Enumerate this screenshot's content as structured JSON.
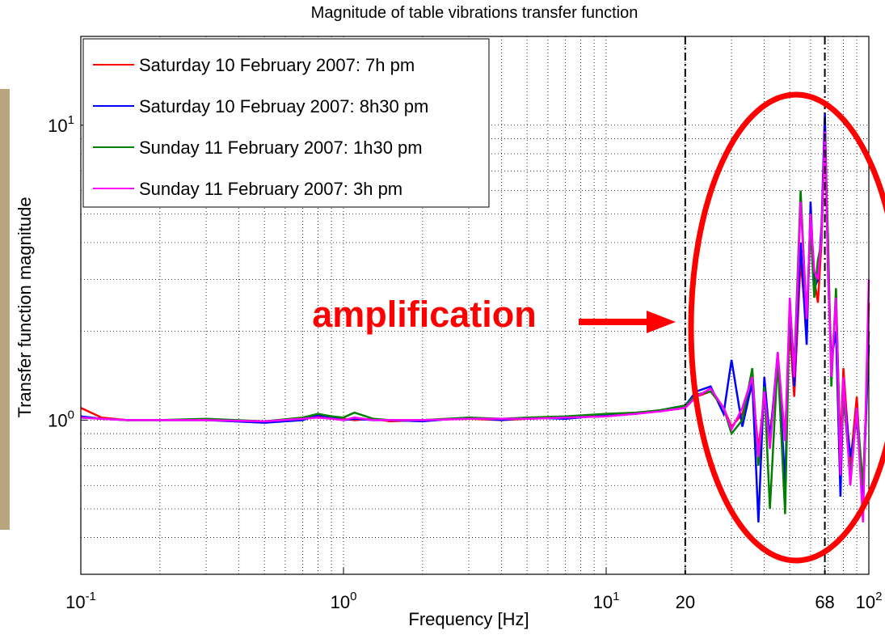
{
  "chart_data": {
    "type": "line",
    "title": "Magnitude of table vibrations transfer function",
    "x_label": "Frequency [Hz]",
    "y_label": "Transfer function magnitude",
    "x_scale": "log",
    "y_scale": "log",
    "grid": true,
    "minor_grid": true,
    "legend_position": "upper-left",
    "xlim": [
      0.1,
      100
    ],
    "ylim": [
      0.3,
      20
    ],
    "xticks": [
      {
        "value": 0.1,
        "label": "10^-1"
      },
      {
        "value": 1,
        "label": "10^0"
      },
      {
        "value": 10,
        "label": "10^1"
      },
      20,
      68,
      {
        "value": 100,
        "label": "10^2"
      }
    ],
    "yticks": [
      {
        "value": 1,
        "label": "10^0"
      },
      {
        "value": 10,
        "label": "10^1"
      }
    ],
    "reference_lines": [
      20,
      68
    ],
    "annotations": [
      {
        "text": "amplification",
        "color": "#ff0000"
      }
    ],
    "x": [
      0.1,
      0.12,
      0.15,
      0.2,
      0.3,
      0.5,
      0.7,
      0.8,
      0.9,
      1.0,
      1.1,
      1.3,
      1.5,
      2,
      3,
      4,
      5,
      7,
      10,
      13,
      16,
      20,
      22,
      25,
      28,
      30,
      33,
      36,
      38,
      40,
      42,
      45,
      48,
      50,
      52,
      55,
      58,
      60,
      62,
      64,
      66,
      68,
      70,
      72,
      75,
      78,
      80,
      85,
      90,
      95,
      100
    ],
    "series": [
      {
        "name": "Saturday 10 February 2007: 7h pm",
        "color": "#ff0000",
        "values": [
          1.1,
          1.02,
          1.0,
          1.0,
          1.0,
          0.99,
          1.01,
          1.03,
          1.02,
          1.01,
          1.0,
          1.01,
          0.99,
          1.0,
          1.01,
          1.0,
          1.01,
          1.02,
          1.03,
          1.06,
          1.07,
          1.1,
          1.2,
          1.25,
          1.1,
          0.95,
          1.05,
          1.3,
          0.8,
          1.2,
          0.9,
          1.5,
          0.9,
          2.0,
          1.2,
          3.5,
          2.0,
          5.0,
          3.0,
          2.5,
          4.0,
          10.5,
          3.5,
          1.5,
          2.5,
          0.8,
          1.5,
          0.7,
          1.2,
          0.5,
          2.5
        ]
      },
      {
        "name": "Saturday 10 Februay 2007: 8h30 pm",
        "color": "#0000ff",
        "values": [
          1.03,
          1.01,
          1.0,
          1.0,
          1.0,
          0.98,
          1.0,
          1.04,
          1.02,
          1.0,
          1.01,
          1.0,
          1.0,
          0.99,
          1.02,
          1.0,
          1.02,
          1.01,
          1.04,
          1.05,
          1.08,
          1.12,
          1.25,
          1.3,
          1.05,
          1.6,
          0.95,
          1.35,
          0.45,
          1.4,
          0.85,
          1.7,
          0.6,
          2.4,
          1.3,
          4.0,
          1.8,
          5.5,
          2.8,
          3.0,
          4.5,
          11.0,
          3.0,
          1.6,
          2.0,
          0.55,
          1.3,
          0.75,
          1.0,
          0.55,
          1.8
        ]
      },
      {
        "name": "Sunday 11 February 2007: 1h30 pm",
        "color": "#008000",
        "values": [
          1.02,
          1.01,
          1.0,
          1.0,
          1.01,
          0.99,
          1.02,
          1.05,
          1.03,
          1.02,
          1.06,
          1.01,
          1.0,
          1.0,
          1.02,
          1.01,
          1.02,
          1.03,
          1.05,
          1.06,
          1.08,
          1.12,
          1.22,
          1.25,
          1.1,
          0.9,
          1.0,
          1.5,
          0.7,
          1.3,
          0.5,
          1.6,
          0.48,
          2.5,
          1.5,
          6.0,
          2.2,
          4.5,
          2.6,
          3.5,
          4.0,
          9.0,
          4.0,
          1.3,
          2.8,
          0.7,
          1.2,
          0.65,
          1.1,
          0.6,
          2.0
        ]
      },
      {
        "name": "Sunday 11 February 2007: 3h pm",
        "color": "#ff00ff",
        "values": [
          1.02,
          1.01,
          1.0,
          1.0,
          1.0,
          0.99,
          1.01,
          1.02,
          1.01,
          1.0,
          1.02,
          1.0,
          1.0,
          1.0,
          1.01,
          1.01,
          1.01,
          1.02,
          1.03,
          1.05,
          1.07,
          1.1,
          1.2,
          1.28,
          1.1,
          0.93,
          1.1,
          1.4,
          0.75,
          1.25,
          0.8,
          1.7,
          0.85,
          2.6,
          1.4,
          5.5,
          2.2,
          5.0,
          3.2,
          3.0,
          4.2,
          9.5,
          3.2,
          1.4,
          2.6,
          0.65,
          1.4,
          0.6,
          1.1,
          0.45,
          3.0
        ]
      }
    ]
  }
}
